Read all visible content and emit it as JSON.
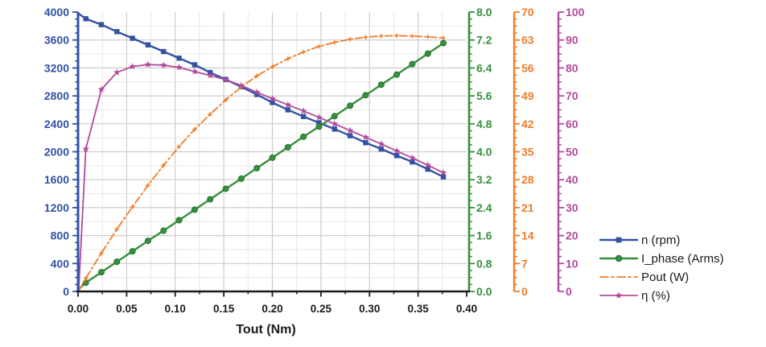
{
  "chart_data": {
    "type": "line",
    "title": "",
    "xlabel": "Tout (Nm)",
    "grid": true,
    "legend_position": "right-bottom",
    "x_axis": {
      "label": "Tout (Nm)",
      "min": 0.0,
      "max": 0.4,
      "major_step": 0.05,
      "minor_step": 0.025,
      "decimals": 2,
      "tick_labels": [
        "0.00",
        "0.05",
        "0.10",
        "0.15",
        "0.20",
        "0.25",
        "0.30",
        "0.35",
        "0.40"
      ],
      "color": "#1a1a1a"
    },
    "y_axes": [
      {
        "id": "n",
        "name": "n (rpm)",
        "min": 0,
        "max": 4000,
        "major": 400,
        "minor": 100,
        "decimals": 0,
        "color": "#3352a4",
        "tick_labels": [
          "0",
          "400",
          "800",
          "1200",
          "1600",
          "2000",
          "2400",
          "2800",
          "3200",
          "3600",
          "4000"
        ]
      },
      {
        "id": "i",
        "name": "I_phase (Arms)",
        "min": 0,
        "max": 8,
        "major": 0.8,
        "minor": 0.2,
        "decimals": 1,
        "color": "#35903e",
        "tick_labels": [
          "0.0",
          "0.8",
          "1.6",
          "2.4",
          "3.2",
          "4.0",
          "4.8",
          "5.6",
          "6.4",
          "7.2",
          "8.0"
        ]
      },
      {
        "id": "p",
        "name": "Pout (W)",
        "min": 0,
        "max": 70,
        "major": 7,
        "minor": 1.75,
        "decimals": 0,
        "color": "#ee7d2b",
        "tick_labels": [
          "0",
          "7",
          "14",
          "21",
          "28",
          "35",
          "42",
          "49",
          "56",
          "63",
          "70"
        ]
      },
      {
        "id": "eta",
        "name": "η (%)",
        "min": 0,
        "max": 100,
        "major": 10,
        "minor": 2.5,
        "decimals": 0,
        "color": "#b24a9d",
        "tick_labels": [
          "0",
          "10",
          "20",
          "30",
          "40",
          "50",
          "60",
          "70",
          "80",
          "90",
          "100"
        ]
      }
    ],
    "x": [
      0.008,
      0.024,
      0.04,
      0.056,
      0.072,
      0.088,
      0.104,
      0.12,
      0.136,
      0.152,
      0.168,
      0.184,
      0.2,
      0.216,
      0.232,
      0.248,
      0.264,
      0.28,
      0.296,
      0.312,
      0.328,
      0.344,
      0.36,
      0.376
    ],
    "series": [
      {
        "name": "n (rpm)",
        "axis": "n",
        "color": "#3352a4",
        "marker": "square",
        "line": "solid",
        "line_width": 2.4,
        "start": [
          0.0008,
          3975
        ],
        "values": [
          3905,
          3820,
          3720,
          3625,
          3530,
          3435,
          3340,
          3245,
          3135,
          3035,
          2930,
          2820,
          2705,
          2600,
          2505,
          2415,
          2325,
          2230,
          2130,
          2040,
          1945,
          1855,
          1750,
          1640
        ]
      },
      {
        "name": "I_phase (Arms)",
        "axis": "i",
        "color": "#35903e",
        "marker": "circle",
        "line": "solid",
        "line_width": 2.4,
        "start": [
          0.0008,
          0.07
        ],
        "values": [
          0.25,
          0.55,
          0.85,
          1.15,
          1.45,
          1.74,
          2.04,
          2.34,
          2.64,
          2.94,
          3.23,
          3.53,
          3.83,
          4.13,
          4.43,
          4.72,
          5.02,
          5.32,
          5.62,
          5.92,
          6.21,
          6.51,
          6.81,
          7.11
        ]
      },
      {
        "name": "Pout (W)",
        "axis": "p",
        "color": "#ee7d2b",
        "marker": "plus",
        "line": "dashdot",
        "line_width": 1.8,
        "start": [
          0.0008,
          0.25
        ],
        "values": [
          3.3,
          9.6,
          15.6,
          21.2,
          26.6,
          31.6,
          36.3,
          40.6,
          44.4,
          48.0,
          51.2,
          54.0,
          56.3,
          58.3,
          60.0,
          61.4,
          62.4,
          63.2,
          63.7,
          64.0,
          64.1,
          64.0,
          63.8,
          63.5
        ]
      },
      {
        "name": "η (%)",
        "axis": "eta",
        "color": "#b24a9d",
        "marker": "star",
        "line": "solid",
        "line_width": 1.8,
        "start": [
          0.0008,
          1.5
        ],
        "values": [
          51.0,
          72.3,
          78.4,
          80.5,
          81.2,
          81.0,
          80.2,
          78.7,
          77.3,
          75.8,
          73.7,
          71.3,
          69.0,
          66.8,
          64.6,
          62.3,
          60.0,
          57.6,
          55.2,
          52.8,
          50.3,
          47.8,
          45.2,
          42.5
        ]
      }
    ],
    "legend": [
      "n (rpm)",
      "I_phase (Arms)",
      "Pout (W)",
      "η (%)"
    ],
    "grid_colors": {
      "major": "#cfccc8",
      "minor": "#e9e7e4"
    }
  }
}
